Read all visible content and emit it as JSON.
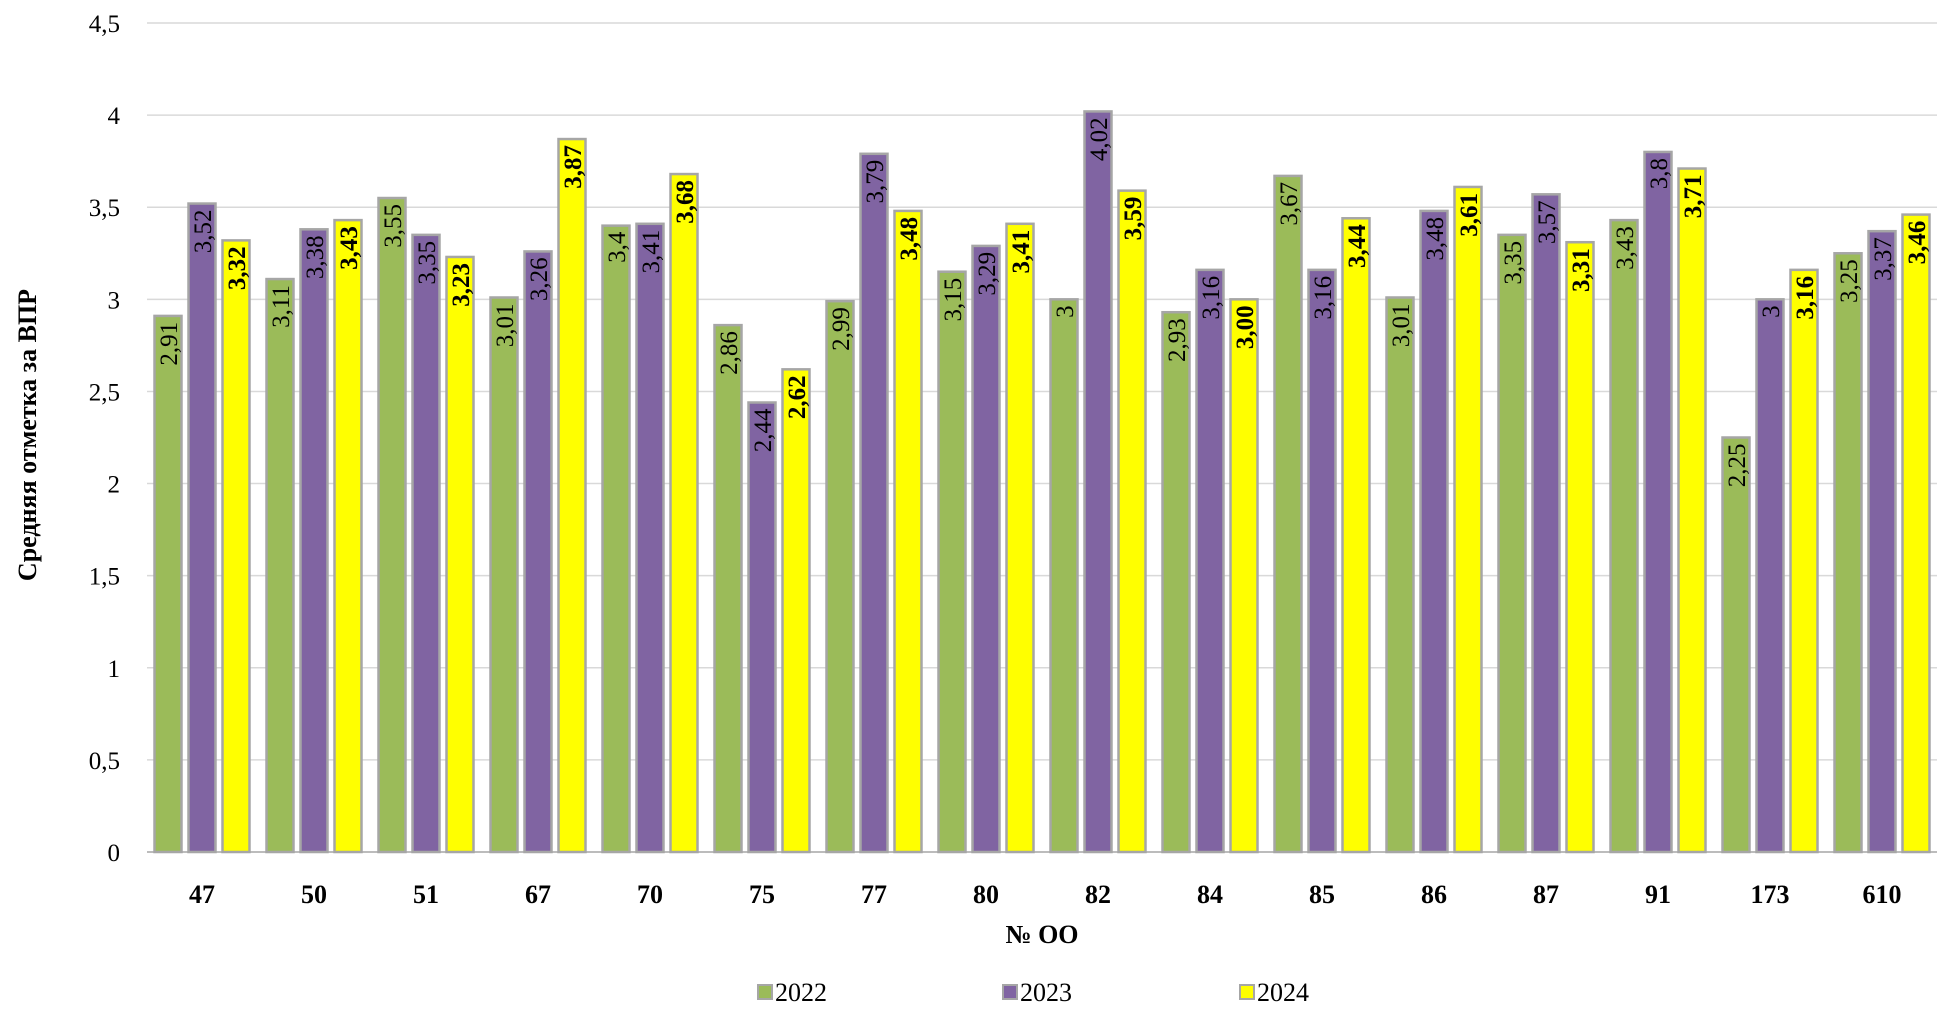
{
  "chart_data": {
    "type": "bar",
    "ylabel": "Средняя отметка за ВПР",
    "xlabel": "№ ОО",
    "ylim": [
      0,
      4.5
    ],
    "yticks": [
      "0",
      "0,5",
      "1",
      "1,5",
      "2",
      "2,5",
      "3",
      "3,5",
      "4",
      "4,5"
    ],
    "grid": true,
    "legend_position": "bottom",
    "categories": [
      "47",
      "50",
      "51",
      "67",
      "70",
      "75",
      "77",
      "80",
      "82",
      "84",
      "85",
      "86",
      "87",
      "91",
      "173",
      "610"
    ],
    "series": [
      {
        "name": "2022",
        "color": "#9BBB59",
        "values": [
          2.91,
          3.11,
          3.55,
          3.01,
          3.4,
          2.86,
          2.99,
          3.15,
          3,
          2.93,
          3.67,
          3.01,
          3.35,
          3.43,
          2.25,
          3.25
        ],
        "labels": [
          "2,91",
          "3,11",
          "3,55",
          "3,01",
          "3,4",
          "2,86",
          "2,99",
          "3,15",
          "3",
          "2,93",
          "3,67",
          "3,01",
          "3,35",
          "3,43",
          "2,25",
          "3,25"
        ]
      },
      {
        "name": "2023",
        "color": "#8064A2",
        "values": [
          3.52,
          3.38,
          3.35,
          3.26,
          3.41,
          2.44,
          3.79,
          3.29,
          4.02,
          3.16,
          3.16,
          3.48,
          3.57,
          3.8,
          3,
          3.37
        ],
        "labels": [
          "3,52",
          "3,38",
          "3,35",
          "3,26",
          "3,41",
          "2,44",
          "3,79",
          "3,29",
          "4,02",
          "3,16",
          "3,16",
          "3,48",
          "3,57",
          "3,8",
          "3",
          "3,37"
        ]
      },
      {
        "name": "2024",
        "color": "#FFFF00",
        "values": [
          3.32,
          3.43,
          3.23,
          3.87,
          3.68,
          2.62,
          3.48,
          3.41,
          3.59,
          3.0,
          3.44,
          3.61,
          3.31,
          3.71,
          3.16,
          3.46
        ],
        "labels": [
          "3,32",
          "3,43",
          "3,23",
          "3,87",
          "3,68",
          "2,62",
          "3,48",
          "3,41",
          "3,59",
          "3,00",
          "3,44",
          "3,61",
          "3,31",
          "3,71",
          "3,16",
          "3,46"
        ]
      }
    ]
  }
}
